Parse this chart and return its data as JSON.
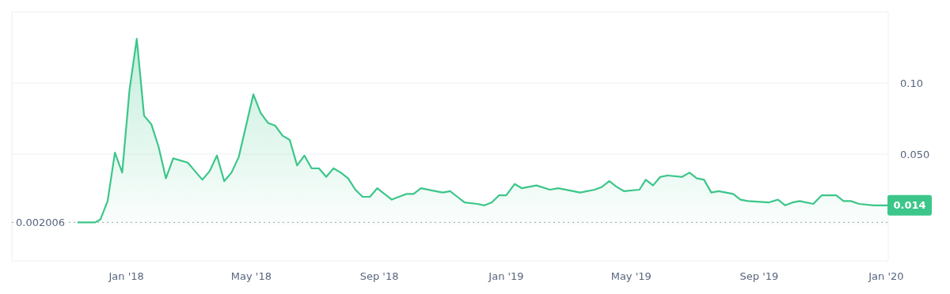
{
  "chart_data": {
    "type": "area",
    "color": "#3cc68a",
    "x": [
      "2017-11-15",
      "2017-12-02",
      "2017-12-07",
      "2017-12-14",
      "2017-12-21",
      "2017-12-28",
      "2018-01-04",
      "2018-01-11",
      "2018-01-18",
      "2018-01-25",
      "2018-02-01",
      "2018-02-08",
      "2018-02-15",
      "2018-03-01",
      "2018-03-08",
      "2018-03-15",
      "2018-03-22",
      "2018-03-29",
      "2018-04-05",
      "2018-04-12",
      "2018-04-19",
      "2018-05-03",
      "2018-05-10",
      "2018-05-17",
      "2018-05-24",
      "2018-05-31",
      "2018-06-07",
      "2018-06-14",
      "2018-06-21",
      "2018-06-28",
      "2018-07-05",
      "2018-07-12",
      "2018-07-19",
      "2018-07-26",
      "2018-08-02",
      "2018-08-09",
      "2018-08-16",
      "2018-08-23",
      "2018-08-30",
      "2018-09-06",
      "2018-09-13",
      "2018-09-27",
      "2018-10-04",
      "2018-10-11",
      "2018-10-25",
      "2018-11-01",
      "2018-11-08",
      "2018-11-15",
      "2018-11-22",
      "2018-12-04",
      "2018-12-11",
      "2018-12-18",
      "2018-12-25",
      "2019-01-01",
      "2019-01-09",
      "2019-01-16",
      "2019-01-30",
      "2019-02-12",
      "2019-02-20",
      "2019-03-13",
      "2019-03-27",
      "2019-04-03",
      "2019-04-10",
      "2019-04-17",
      "2019-04-24",
      "2019-05-09",
      "2019-05-15",
      "2019-05-22",
      "2019-05-29",
      "2019-06-05",
      "2019-06-19",
      "2019-06-26",
      "2019-07-03",
      "2019-07-10",
      "2019-07-17",
      "2019-07-24",
      "2019-08-07",
      "2019-08-14",
      "2019-08-21",
      "2019-09-10",
      "2019-09-19",
      "2019-09-26",
      "2019-10-03",
      "2019-10-10",
      "2019-10-16",
      "2019-10-23",
      "2019-10-31",
      "2019-11-14",
      "2019-11-21",
      "2019-11-28",
      "2019-12-06",
      "2019-12-20",
      "2020-01-03"
    ],
    "values": [
      0.002,
      0.002,
      0.004,
      0.017,
      0.051,
      0.037,
      0.095,
      0.131,
      0.077,
      0.071,
      0.055,
      0.033,
      0.047,
      0.044,
      0.038,
      0.032,
      0.038,
      0.049,
      0.031,
      0.037,
      0.048,
      0.092,
      0.079,
      0.072,
      0.07,
      0.063,
      0.06,
      0.042,
      0.049,
      0.04,
      0.04,
      0.034,
      0.04,
      0.037,
      0.033,
      0.025,
      0.02,
      0.02,
      0.026,
      0.022,
      0.018,
      0.022,
      0.022,
      0.026,
      0.024,
      0.023,
      0.024,
      0.02,
      0.016,
      0.015,
      0.014,
      0.016,
      0.021,
      0.021,
      0.029,
      0.026,
      0.028,
      0.025,
      0.026,
      0.023,
      0.025,
      0.027,
      0.031,
      0.027,
      0.024,
      0.025,
      0.032,
      0.028,
      0.034,
      0.035,
      0.034,
      0.037,
      0.033,
      0.032,
      0.023,
      0.024,
      0.022,
      0.018,
      0.017,
      0.016,
      0.018,
      0.014,
      0.016,
      0.017,
      0.016,
      0.015,
      0.021,
      0.021,
      0.017,
      0.017,
      0.015,
      0.014,
      0.014
    ],
    "xlim": [
      "2017-09-13",
      "2020-01-03"
    ],
    "xticks": [
      {
        "value": "2018-01-01",
        "label": "Jan '18"
      },
      {
        "value": "2018-05-01",
        "label": "May '18"
      },
      {
        "value": "2018-09-01",
        "label": "Sep '18"
      },
      {
        "value": "2019-01-01",
        "label": "Jan '19"
      },
      {
        "value": "2019-05-01",
        "label": "May '19"
      },
      {
        "value": "2019-09-01",
        "label": "Sep '19"
      },
      {
        "value": "2020-01-01",
        "label": "Jan '20"
      }
    ],
    "ylim": [
      -0.025,
      0.15
    ],
    "yticks": [
      {
        "value": 0.05,
        "label": "0.050"
      },
      {
        "value": 0.1,
        "label": "0.10"
      }
    ],
    "grid": "y",
    "ref_lines": [
      {
        "axis": "y",
        "value": 0.002006,
        "label": "0.002006",
        "line_style": "dotted"
      }
    ],
    "annotations": [
      {
        "text": "0.014",
        "x": "2020-01-03",
        "y": 0.014
      }
    ]
  }
}
